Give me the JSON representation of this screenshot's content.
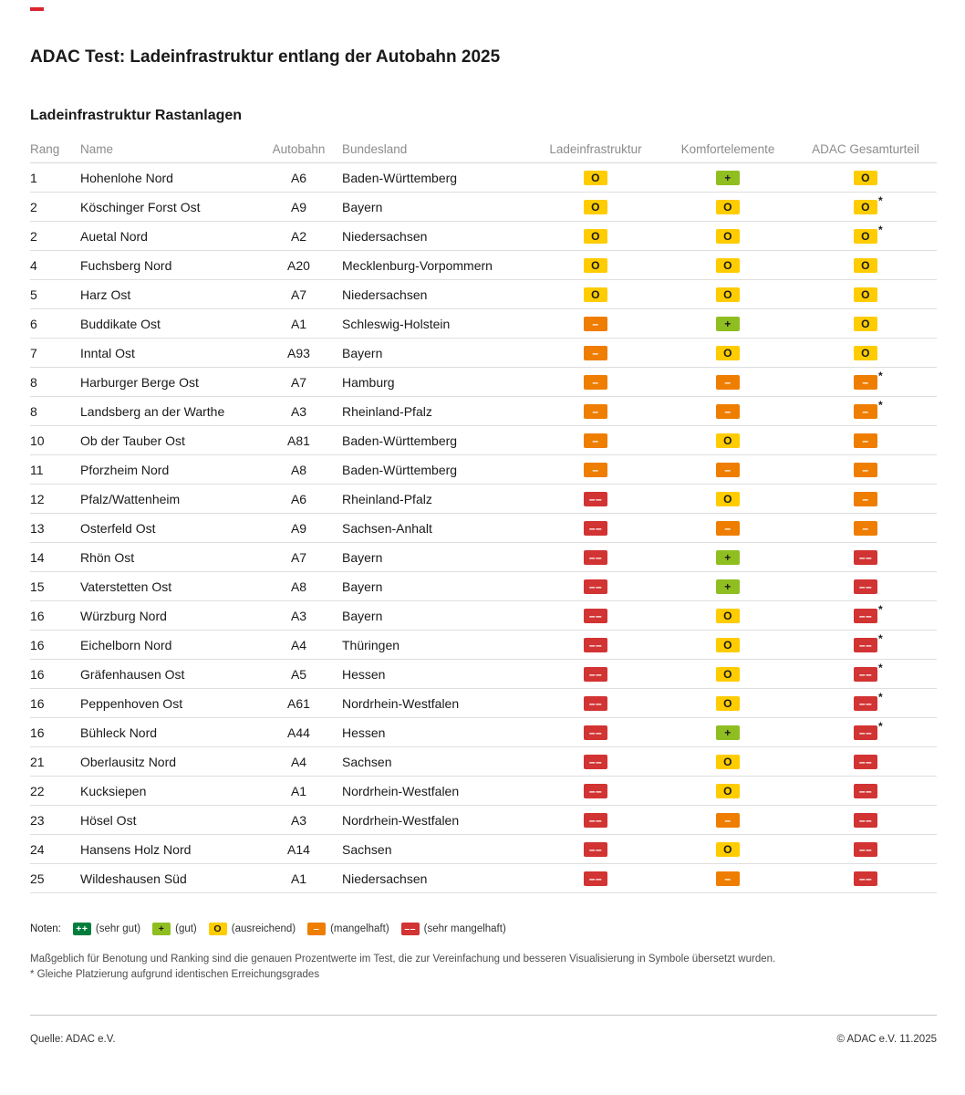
{
  "header": {
    "title": "ADAC Test: Ladeinfrastruktur entlang der Autobahn 2025",
    "section_title": "Ladeinfrastruktur Rastanlagen"
  },
  "colors": {
    "brand_mark": "#d9262e",
    "header_text": "#8c8c8c",
    "row_divider": "#dedede"
  },
  "ratings": {
    "sehr_gut": {
      "symbol": "++",
      "label": "sehr gut",
      "bg": "#007d3c",
      "fg": "#ffffff"
    },
    "gut": {
      "symbol": "+",
      "label": "gut",
      "bg": "#8fbe21",
      "fg": "#1a1a1a"
    },
    "ausreichend": {
      "symbol": "O",
      "label": "ausreichend",
      "bg": "#ffcc00",
      "fg": "#1a1a1a"
    },
    "mangelhaft": {
      "symbol": "–",
      "label": "mangelhaft",
      "bg": "#ef7d00",
      "fg": "#ffffff"
    },
    "sehr_mangelhaft": {
      "symbol": "––",
      "label": "sehr mangelhaft",
      "bg": "#d23333",
      "fg": "#ffffff"
    }
  },
  "chart_data": {
    "type": "table",
    "title": "ADAC Test: Ladeinfrastruktur entlang der Autobahn 2025 – Ladeinfrastruktur Rastanlagen",
    "columns": [
      "Rang",
      "Name",
      "Autobahn",
      "Bundesland",
      "Ladeinfrastruktur",
      "Komfortelemente",
      "ADAC Gesamturteil"
    ],
    "rows": [
      [
        "1",
        "Hohenlohe Nord",
        "A6",
        "Baden-Württemberg",
        "O",
        "+",
        "O"
      ],
      [
        "2",
        "Köschinger Forst Ost",
        "A9",
        "Bayern",
        "O",
        "O",
        "O*"
      ],
      [
        "2",
        "Auetal Nord",
        "A2",
        "Niedersachsen",
        "O",
        "O",
        "O*"
      ],
      [
        "4",
        "Fuchsberg Nord",
        "A20",
        "Mecklenburg-Vorpommern",
        "O",
        "O",
        "O"
      ],
      [
        "5",
        "Harz Ost",
        "A7",
        "Niedersachsen",
        "O",
        "O",
        "O"
      ],
      [
        "6",
        "Buddikate Ost",
        "A1",
        "Schleswig-Holstein",
        "–",
        "+",
        "O"
      ],
      [
        "7",
        "Inntal Ost",
        "A93",
        "Bayern",
        "–",
        "O",
        "O"
      ],
      [
        "8",
        "Harburger Berge Ost",
        "A7",
        "Hamburg",
        "–",
        "–",
        "–*"
      ],
      [
        "8",
        "Landsberg an der Warthe",
        "A3",
        "Rheinland-Pfalz",
        "–",
        "–",
        "–*"
      ],
      [
        "10",
        "Ob der Tauber Ost",
        "A81",
        "Baden-Württemberg",
        "–",
        "O",
        "–"
      ],
      [
        "11",
        "Pforzheim Nord",
        "A8",
        "Baden-Württemberg",
        "–",
        "–",
        "–"
      ],
      [
        "12",
        "Pfalz/Wattenheim",
        "A6",
        "Rheinland-Pfalz",
        "––",
        "O",
        "–"
      ],
      [
        "13",
        "Osterfeld Ost",
        "A9",
        "Sachsen-Anhalt",
        "––",
        "–",
        "–"
      ],
      [
        "14",
        "Rhön Ost",
        "A7",
        "Bayern",
        "––",
        "+",
        "––"
      ],
      [
        "15",
        "Vaterstetten Ost",
        "A8",
        "Bayern",
        "––",
        "+",
        "––"
      ],
      [
        "16",
        "Würzburg Nord",
        "A3",
        "Bayern",
        "––",
        "O",
        "––*"
      ],
      [
        "16",
        "Eichelborn Nord",
        "A4",
        "Thüringen",
        "––",
        "O",
        "––*"
      ],
      [
        "16",
        "Gräfenhausen Ost",
        "A5",
        "Hessen",
        "––",
        "O",
        "––*"
      ],
      [
        "16",
        "Peppenhoven Ost",
        "A61",
        "Nordrhein-Westfalen",
        "––",
        "O",
        "––*"
      ],
      [
        "16",
        "Bühleck Nord",
        "A44",
        "Hessen",
        "––",
        "+",
        "––*"
      ],
      [
        "21",
        "Oberlausitz Nord",
        "A4",
        "Sachsen",
        "––",
        "O",
        "––"
      ],
      [
        "22",
        "Kucksiepen",
        "A1",
        "Nordrhein-Westfalen",
        "––",
        "O",
        "––"
      ],
      [
        "23",
        "Hösel Ost",
        "A3",
        "Nordrhein-Westfalen",
        "––",
        "–",
        "––"
      ],
      [
        "24",
        "Hansens Holz Nord",
        "A14",
        "Sachsen",
        "––",
        "O",
        "––"
      ],
      [
        "25",
        "Wildeshausen Süd",
        "A1",
        "Niedersachsen",
        "––",
        "–",
        "––"
      ]
    ],
    "legend": [
      "++ (sehr gut)",
      "+ (gut)",
      "O (ausreichend)",
      "– (mangelhaft)",
      "–– (sehr mangelhaft)"
    ],
    "layout": {
      "asterisk_meaning": "Gleiche Platzierung aufgrund identischen Erreichungsgrades"
    }
  },
  "legend": {
    "label": "Noten:",
    "items": [
      {
        "symbol": "++",
        "caption": "(sehr gut)"
      },
      {
        "symbol": "+",
        "caption": "(gut)"
      },
      {
        "symbol": "O",
        "caption": "(ausreichend)"
      },
      {
        "symbol": "–",
        "caption": "(mangelhaft)"
      },
      {
        "symbol": "––",
        "caption": "(sehr mangelhaft)"
      }
    ]
  },
  "footnotes": [
    "Maßgeblich für Benotung und Ranking sind die genauen Prozentwerte im Test, die zur Vereinfachung und besseren Visualisierung in Symbole übersetzt wurden.",
    "* Gleiche Platzierung aufgrund identischen Erreichungsgrades"
  ],
  "footer": {
    "source": "Quelle: ADAC e.V.",
    "copyright": "© ADAC e.V. 11.2025"
  }
}
